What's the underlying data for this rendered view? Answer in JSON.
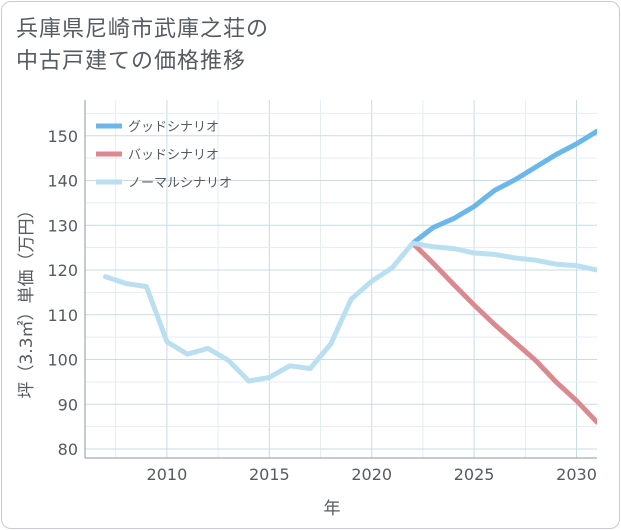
{
  "title_lines": [
    "兵庫県尼崎市武庫之荘の",
    "中古戸建ての価格推移"
  ],
  "chart_data": {
    "type": "line",
    "xlabel": "年",
    "ylabel": "坪（3.3㎡）単価（万円）",
    "xlim": [
      2006,
      2031
    ],
    "ylim": [
      78,
      158
    ],
    "x_ticks": [
      2010,
      2015,
      2020,
      2025,
      2030
    ],
    "y_ticks": [
      80,
      90,
      100,
      110,
      120,
      130,
      140,
      150
    ],
    "grid": true,
    "legend_position": "top-left",
    "series": [
      {
        "name": "グッドシナリオ",
        "color": "#6bb7ea",
        "x": [
          2022,
          2023,
          2024,
          2025,
          2026,
          2027,
          2028,
          2029,
          2030,
          2031
        ],
        "values": [
          126,
          129.5,
          131.5,
          134.2,
          137.8,
          140.2,
          143,
          145.8,
          148.2,
          151
        ]
      },
      {
        "name": "バッドシナリオ",
        "color": "#da8a8f",
        "x": [
          2022,
          2023,
          2024,
          2025,
          2026,
          2027,
          2028,
          2029,
          2030,
          2031
        ],
        "values": [
          126,
          121.5,
          116.8,
          112.2,
          107.8,
          103.8,
          99.8,
          95,
          90.8,
          86
        ]
      },
      {
        "name": "ノーマルシナリオ",
        "color": "#badff0",
        "x": [
          2007,
          2008,
          2009,
          2010,
          2011,
          2012,
          2013,
          2014,
          2015,
          2016,
          2017,
          2018,
          2019,
          2020,
          2021,
          2022,
          2023,
          2024,
          2025,
          2026,
          2027,
          2028,
          2029,
          2030,
          2031
        ],
        "values": [
          118.5,
          117,
          116.3,
          104,
          101.2,
          102.5,
          99.8,
          95.2,
          96,
          98.6,
          98,
          103.5,
          113.5,
          117.5,
          120.5,
          126,
          125.2,
          124.8,
          123.8,
          123.5,
          122.7,
          122.2,
          121.3,
          121,
          120
        ]
      }
    ]
  }
}
